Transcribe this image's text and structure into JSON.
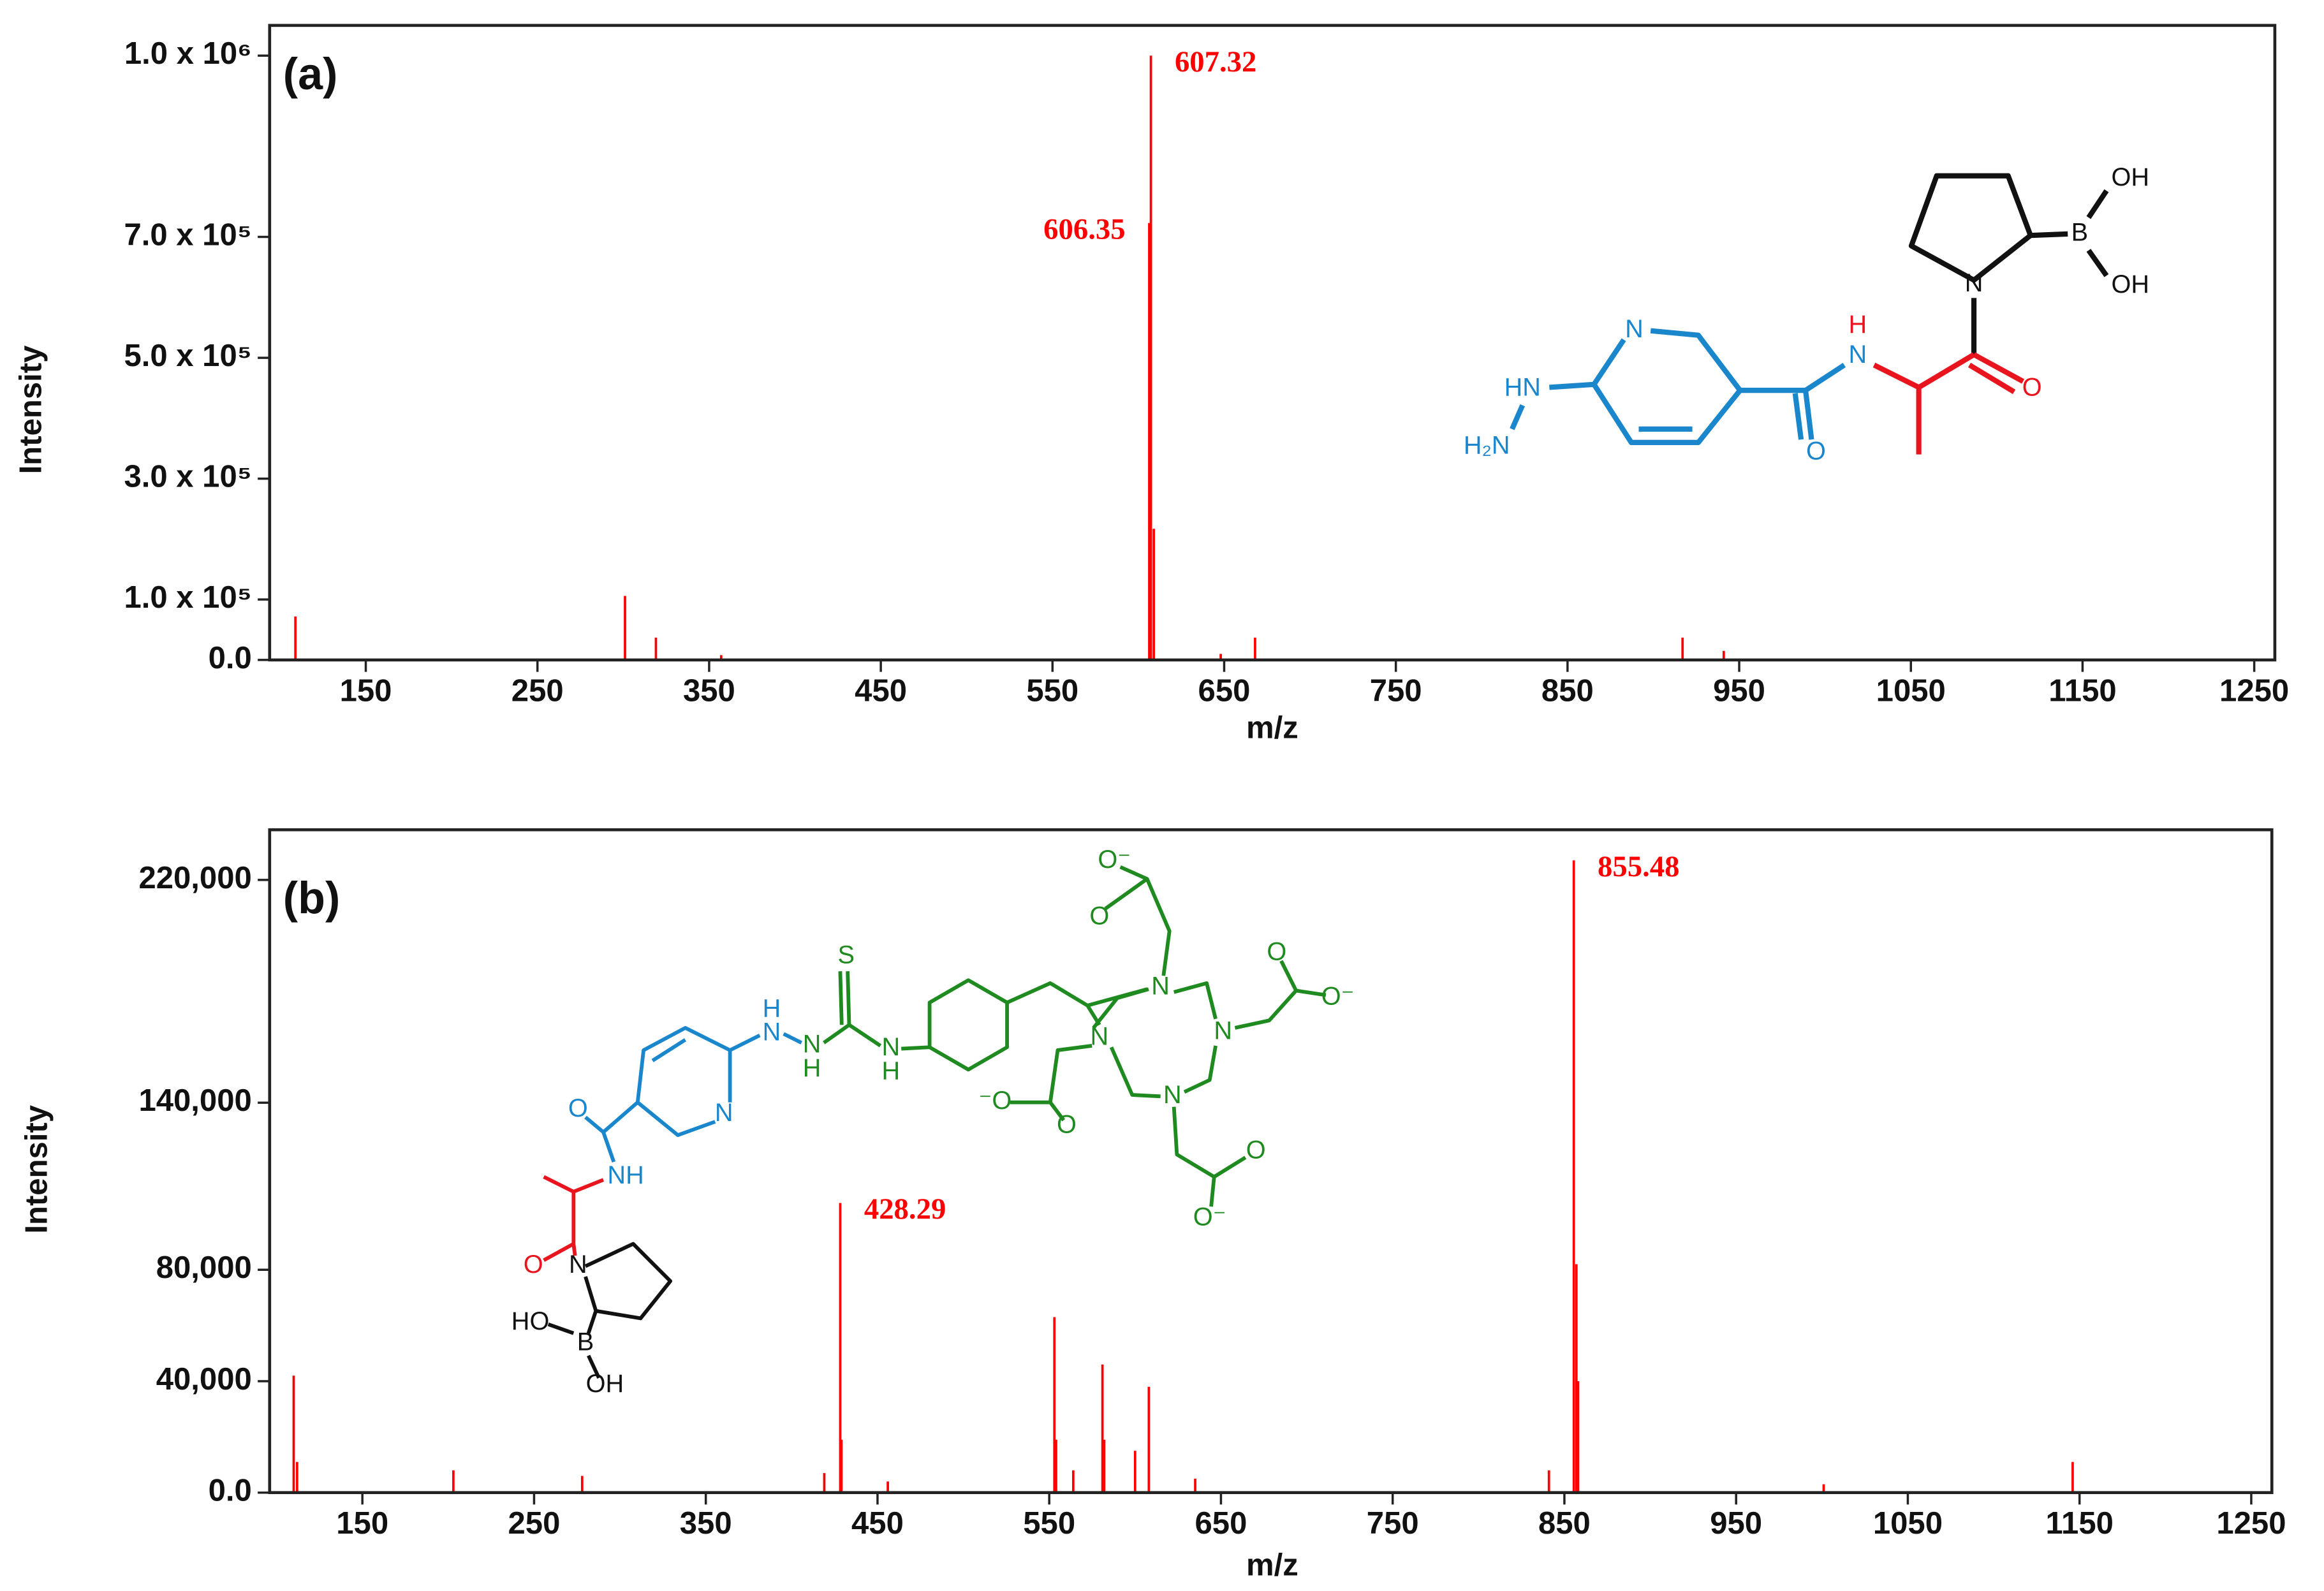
{
  "chart_data": [
    {
      "type": "bar",
      "panel_label": "(a)",
      "x_label": "m/z",
      "y_label": "Intensity",
      "color": "#ff0000",
      "x": [
        109,
        301,
        319,
        357,
        606.35,
        607.32,
        609,
        648,
        668,
        917,
        941
      ],
      "values": [
        72000,
        106000,
        37000,
        8000,
        723000,
        1000000,
        217000,
        10000,
        37000,
        37000,
        15000
      ],
      "xlim": [
        94,
        1262
      ],
      "ylim": [
        0,
        1050000
      ],
      "xticks": [
        150,
        250,
        350,
        450,
        550,
        650,
        750,
        850,
        950,
        1050,
        1150,
        1250
      ],
      "yticks": [
        {
          "value": 0,
          "label": "0.0"
        },
        {
          "value": 100000,
          "label": "1.0 x 10⁵"
        },
        {
          "value": 300000,
          "label": "3.0 x 10⁵"
        },
        {
          "value": 500000,
          "label": "5.0 x 10⁵"
        },
        {
          "value": 700000,
          "label": "7.0 x 10⁵"
        },
        {
          "value": 1000000,
          "label": "1.0 x 10⁶"
        }
      ],
      "annotations": [
        {
          "text": "607.32",
          "x": 607.32,
          "y": 1000000
        },
        {
          "text": "606.35",
          "x": 606.35,
          "y": 723000
        }
      ],
      "structure": [
        "OH",
        "B",
        "OH",
        "N",
        "H",
        "N",
        "O",
        "O",
        "N",
        "HN",
        "H₂N"
      ]
    },
    {
      "type": "bar",
      "panel_label": "(b)",
      "x_label": "m/z",
      "y_label": "Intensity",
      "color": "#ff0000",
      "x": [
        110,
        112,
        203,
        278,
        419,
        428.29,
        429,
        456,
        553,
        554,
        564,
        581,
        582,
        600,
        608,
        635,
        841,
        855.48,
        857,
        858,
        1001,
        1146
      ],
      "values": [
        42000,
        11000,
        8000,
        6000,
        7000,
        104000,
        19000,
        4000,
        63000,
        19000,
        8000,
        46000,
        19000,
        15000,
        38000,
        5000,
        8000,
        227000,
        82000,
        40000,
        3000,
        11000
      ],
      "xlim": [
        96,
        1262
      ],
      "ylim": [
        0,
        238000
      ],
      "xticks": [
        150,
        250,
        350,
        450,
        550,
        650,
        750,
        850,
        950,
        1050,
        1150,
        1250
      ],
      "yticks": [
        {
          "value": 0,
          "label": "0.0"
        },
        {
          "value": 40000,
          "label": "40,000"
        },
        {
          "value": 80000,
          "label": "80,000"
        },
        {
          "value": 140000,
          "label": "140,000"
        },
        {
          "value": 220000,
          "label": "220,000"
        }
      ],
      "annotations": [
        {
          "text": "428.29",
          "x": 428.29,
          "y": 104000
        },
        {
          "text": "855.48",
          "x": 855.48,
          "y": 227000
        }
      ],
      "structure": [
        "O⁻",
        "O",
        "O",
        "O⁻",
        "⁻O",
        "O",
        "O",
        "O⁻",
        "N",
        "N",
        "N",
        "N",
        "S",
        "H",
        "N",
        "N",
        "H",
        "N",
        "H",
        "N",
        "O",
        "NH",
        "O",
        "N",
        "HO",
        "B",
        "OH"
      ]
    }
  ]
}
